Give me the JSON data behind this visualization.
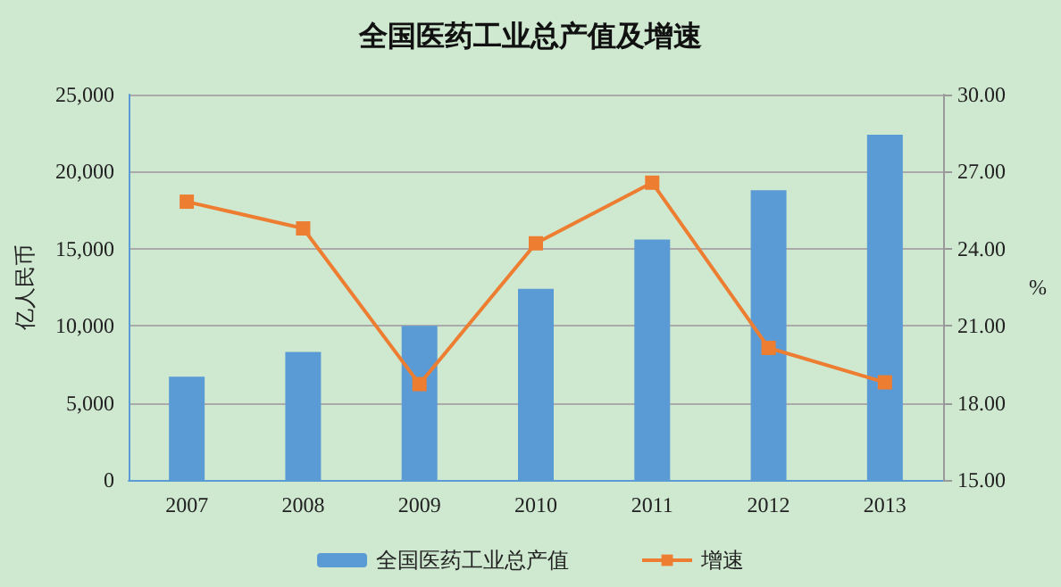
{
  "chart_data": {
    "type": "bar",
    "title": "全国医药工业总产值及增速",
    "ylabel": "亿人民币",
    "y2label": "%",
    "categories": [
      "2007",
      "2008",
      "2009",
      "2010",
      "2011",
      "2012",
      "2013"
    ],
    "series": [
      {
        "name": "全国医药工业总产值",
        "color": "#5b9bd5",
        "values": [
          6700,
          8300,
          10000,
          12400,
          15600,
          18800,
          22400
        ]
      },
      {
        "name": "增速",
        "type": "line",
        "axis": "y2",
        "color": "#ed7d31",
        "marker": "square",
        "values": [
          25.83,
          24.79,
          18.73,
          24.21,
          26.57,
          20.14,
          18.8
        ]
      }
    ],
    "ylim": [
      0,
      25000
    ],
    "yticks": [
      {
        "value": 0,
        "label": "0"
      },
      {
        "value": 5000,
        "label": "5,000"
      },
      {
        "value": 10000,
        "label": "10,000"
      },
      {
        "value": 15000,
        "label": "15,000"
      },
      {
        "value": 20000,
        "label": "20,000"
      },
      {
        "value": 25000,
        "label": "25,000"
      }
    ],
    "y2lim": [
      15,
      30
    ],
    "y2ticks": [
      {
        "value": 15,
        "label": "15.00"
      },
      {
        "value": 18,
        "label": "18.00"
      },
      {
        "value": 21,
        "label": "21.00"
      },
      {
        "value": 24,
        "label": "24.00"
      },
      {
        "value": 27,
        "label": "27.00"
      },
      {
        "value": 30,
        "label": "30.00"
      }
    ],
    "grid": "y",
    "legend": "bottom"
  }
}
